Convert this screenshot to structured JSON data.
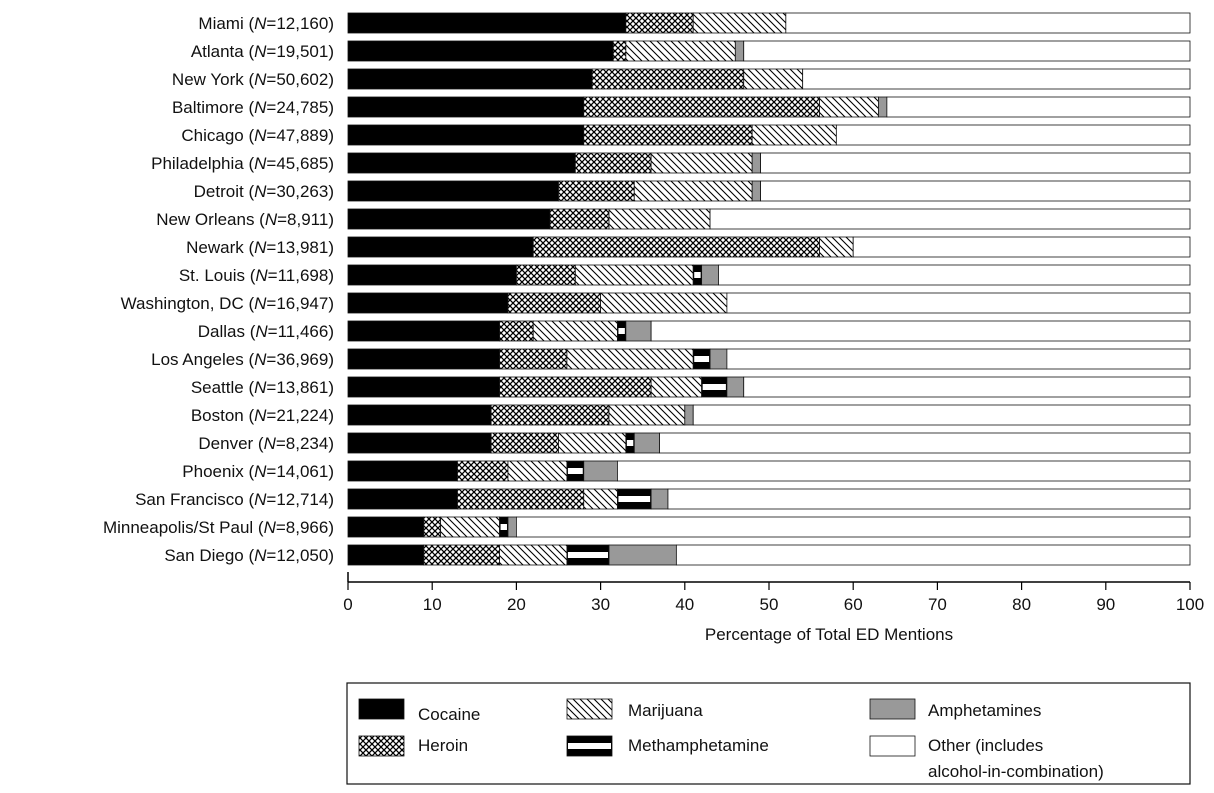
{
  "chart_data": {
    "type": "bar",
    "orientation": "horizontal",
    "stacked": true,
    "title": "",
    "xlabel": "Percentage of Total ED Mentions",
    "ylabel": "",
    "xlim": [
      0,
      100
    ],
    "xticks": [
      0,
      10,
      20,
      30,
      40,
      50,
      60,
      70,
      80,
      90,
      100
    ],
    "grid": false,
    "legend_position": "bottom",
    "categories": [
      {
        "name": "Miami",
        "n": "12,160"
      },
      {
        "name": "Atlanta",
        "n": "19,501"
      },
      {
        "name": "New York",
        "n": "50,602"
      },
      {
        "name": "Baltimore",
        "n": "24,785"
      },
      {
        "name": "Chicago",
        "n": "47,889"
      },
      {
        "name": "Philadelphia",
        "n": "45,685"
      },
      {
        "name": "Detroit",
        "n": "30,263"
      },
      {
        "name": "New Orleans",
        "n": "8,911"
      },
      {
        "name": "Newark",
        "n": "13,981"
      },
      {
        "name": "St. Louis",
        "n": "11,698"
      },
      {
        "name": "Washington, DC",
        "n": "16,947"
      },
      {
        "name": "Dallas",
        "n": "11,466"
      },
      {
        "name": "Los Angeles",
        "n": "36,969"
      },
      {
        "name": "Seattle",
        "n": "13,861"
      },
      {
        "name": "Boston",
        "n": "21,224"
      },
      {
        "name": "Denver",
        "n": "8,234"
      },
      {
        "name": "Phoenix",
        "n": "14,061"
      },
      {
        "name": "San Francisco",
        "n": "12,714"
      },
      {
        "name": "Minneapolis/St Paul",
        "n": "8,966"
      },
      {
        "name": "San Diego",
        "n": "12,050"
      }
    ],
    "series": [
      {
        "name": "Cocaine",
        "pattern": "cocaine",
        "values": [
          33,
          31.5,
          29,
          28,
          28,
          27,
          25,
          24,
          22,
          20,
          19,
          18,
          18,
          18,
          17,
          17,
          13,
          13,
          9,
          9
        ]
      },
      {
        "name": "Heroin",
        "pattern": "heroin",
        "values": [
          8,
          1.5,
          18,
          28,
          20,
          9,
          9,
          7,
          34,
          7,
          11,
          4,
          8,
          18,
          14,
          8,
          6,
          15,
          2,
          9
        ]
      },
      {
        "name": "Marijuana",
        "pattern": "marijuana",
        "values": [
          11,
          13,
          7,
          7,
          10,
          12,
          14,
          12,
          4,
          14,
          15,
          10,
          15,
          6,
          9,
          8,
          7,
          4,
          7,
          8
        ]
      },
      {
        "name": "Methamphetamine",
        "pattern": "meth",
        "values": [
          0,
          0,
          0,
          0,
          0,
          0,
          0,
          0,
          0,
          1,
          0,
          1,
          2,
          3,
          0,
          1,
          2,
          4,
          1,
          5
        ]
      },
      {
        "name": "Amphetamines",
        "pattern": "amph",
        "values": [
          0,
          1,
          0,
          1,
          0,
          1,
          1,
          0,
          0,
          2,
          0,
          3,
          2,
          2,
          1,
          3,
          4,
          2,
          1,
          8
        ]
      },
      {
        "name": "Other (includes alcohol-in-combination)",
        "pattern": "other",
        "values": [
          48,
          53,
          46,
          36,
          42,
          51,
          51,
          57,
          40,
          56,
          55,
          64,
          55,
          53,
          59,
          63,
          68,
          62,
          80,
          61
        ]
      }
    ],
    "legend": [
      {
        "series": 0,
        "label": "Cocaine"
      },
      {
        "series": 1,
        "label": "Heroin"
      },
      {
        "series": 2,
        "label": "Marijuana"
      },
      {
        "series": 3,
        "label": "Methamphetamine"
      },
      {
        "series": 4,
        "label": "Amphetamines"
      },
      {
        "series": 5,
        "label": "Other (includes",
        "label2": "alcohol-in-combination)"
      }
    ]
  },
  "colors": {
    "cocaine": "#000000",
    "amphetamines": "#999999",
    "other": "#ffffff",
    "outline": "#111111"
  }
}
